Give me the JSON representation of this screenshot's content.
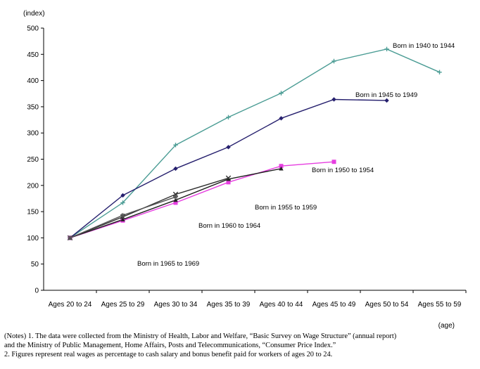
{
  "chart_data": {
    "type": "line",
    "ylabel": "(index)",
    "xlabel": "(age)",
    "ylim": [
      0,
      500
    ],
    "yticks": [
      0,
      50,
      100,
      150,
      200,
      250,
      300,
      350,
      400,
      450,
      500
    ],
    "categories": [
      "Ages 20 to 24",
      "Ages 25 to 29",
      "Ages 30 to 34",
      "Ages 35 to 39",
      "Ages 40 to 44",
      "Ages 45 to 49",
      "Ages 50 to 54",
      "Ages 55 to 59"
    ],
    "grid": false,
    "series": [
      {
        "name": "Born in 1940 to 1944",
        "color": "#4a9c94",
        "marker": "plus",
        "values": [
          100,
          167,
          277,
          330,
          376,
          437,
          460,
          416
        ]
      },
      {
        "name": "Born in 1945 to 1949",
        "color": "#26206e",
        "marker": "diamond",
        "values": [
          100,
          181,
          232,
          273,
          328,
          364,
          362,
          null
        ]
      },
      {
        "name": "Born in 1950 to 1954",
        "color": "#e63ee0",
        "marker": "square",
        "values": [
          100,
          133,
          167,
          206,
          237,
          245,
          null,
          null
        ]
      },
      {
        "name": "Born in 1955 to 1959",
        "color": "#202020",
        "marker": "triangle",
        "values": [
          100,
          135,
          172,
          212,
          232,
          null,
          null,
          null
        ]
      },
      {
        "name": "Born in 1960 to 1964",
        "color": "#303030",
        "marker": "x",
        "values": [
          100,
          140,
          183,
          214,
          null,
          null,
          null,
          null
        ]
      },
      {
        "name": "Born in 1965 to 1969",
        "color": "#555555",
        "marker": "star",
        "values": [
          100,
          143,
          178,
          null,
          null,
          null,
          null,
          null
        ]
      }
    ]
  },
  "notes": [
    "(Notes) 1. The data were collected from the Ministry of Health, Labor and Welfare, “Basic Survey on Wage Structure” (annual report)",
    "and the Ministry of Public Management, Home Affairs, Posts and Telecommunications, “Consumer Price Index.”",
    "2. Figures represent real wages as percentage to cash salary and bonus benefit paid for workers of ages 20 to 24."
  ]
}
